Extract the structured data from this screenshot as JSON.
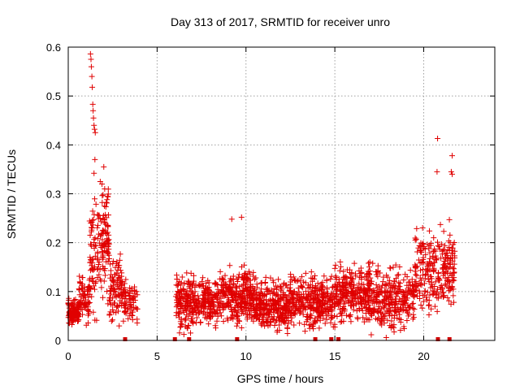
{
  "chart_data": {
    "type": "scatter",
    "title": "Day 313 of 2017, SRMTID for receiver unro",
    "xlabel": "GPS time / hours",
    "ylabel": "SRMTID / TECUs",
    "xlim": [
      0,
      24
    ],
    "ylim": [
      0,
      0.6
    ],
    "x_ticks": [
      0,
      5,
      10,
      15,
      20
    ],
    "x_tick_labels": [
      "0",
      "5",
      "10",
      "15",
      "20"
    ],
    "y_ticks": [
      0,
      0.1,
      0.2,
      0.3,
      0.4,
      0.5,
      0.6
    ],
    "y_tick_labels": [
      "0",
      "0.1",
      "0.2",
      "0.3",
      "0.4",
      "0.5",
      "0.6"
    ],
    "grid": true,
    "marker": "plus",
    "color": "#e00000",
    "peak_points": [
      [
        1.25,
        0.586
      ],
      [
        1.28,
        0.575
      ],
      [
        1.3,
        0.56
      ],
      [
        1.33,
        0.54
      ],
      [
        1.35,
        0.518
      ],
      [
        1.38,
        0.483
      ],
      [
        1.4,
        0.47
      ],
      [
        1.42,
        0.455
      ],
      [
        1.45,
        0.44
      ],
      [
        1.48,
        0.432
      ],
      [
        1.52,
        0.425
      ],
      [
        1.5,
        0.37
      ],
      [
        1.45,
        0.342
      ],
      [
        20.78,
        0.413
      ],
      [
        20.75,
        0.345
      ],
      [
        21.6,
        0.378
      ],
      [
        21.55,
        0.345
      ],
      [
        21.6,
        0.34
      ],
      [
        9.2,
        0.248
      ],
      [
        9.75,
        0.252
      ],
      [
        2.0,
        0.355
      ],
      [
        1.8,
        0.325
      ],
      [
        1.9,
        0.32
      ],
      [
        2.05,
        0.31
      ]
    ],
    "data_gaps_hours": [
      [
        3.9,
        6.05
      ],
      [
        21.75,
        24
      ]
    ],
    "bottom_markers_hours": [
      3.2,
      6.0,
      6.8,
      9.5,
      13.9,
      14.8,
      15.2,
      20.8,
      21.45
    ],
    "series": [
      {
        "name": "SRMTID",
        "segments": [
          {
            "x_start": 0.0,
            "x_end": 0.6,
            "n": 130,
            "mean": 0.058,
            "spread": 0.02
          },
          {
            "x_start": 0.6,
            "x_end": 1.2,
            "n": 70,
            "mean": 0.085,
            "spread": 0.04
          },
          {
            "x_start": 1.2,
            "x_end": 1.6,
            "n": 60,
            "mean": 0.16,
            "spread": 0.09
          },
          {
            "x_start": 1.6,
            "x_end": 2.3,
            "n": 110,
            "mean": 0.2,
            "spread": 0.09
          },
          {
            "x_start": 2.3,
            "x_end": 3.0,
            "n": 90,
            "mean": 0.11,
            "spread": 0.055
          },
          {
            "x_start": 3.0,
            "x_end": 3.9,
            "n": 80,
            "mean": 0.08,
            "spread": 0.04
          },
          {
            "x_start": 6.05,
            "x_end": 8.5,
            "n": 330,
            "mean": 0.078,
            "spread": 0.042
          },
          {
            "x_start": 8.5,
            "x_end": 10.5,
            "n": 300,
            "mean": 0.088,
            "spread": 0.045
          },
          {
            "x_start": 10.5,
            "x_end": 12.5,
            "n": 300,
            "mean": 0.072,
            "spread": 0.04
          },
          {
            "x_start": 12.5,
            "x_end": 15.0,
            "n": 320,
            "mean": 0.08,
            "spread": 0.042
          },
          {
            "x_start": 15.0,
            "x_end": 17.0,
            "n": 280,
            "mean": 0.098,
            "spread": 0.045
          },
          {
            "x_start": 17.0,
            "x_end": 19.5,
            "n": 300,
            "mean": 0.085,
            "spread": 0.05
          },
          {
            "x_start": 19.5,
            "x_end": 21.75,
            "n": 260,
            "mean": 0.145,
            "spread": 0.065
          }
        ]
      }
    ]
  }
}
